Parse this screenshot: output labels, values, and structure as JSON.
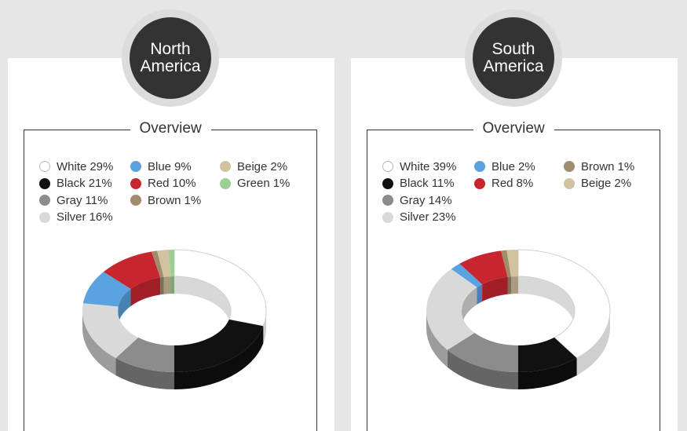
{
  "chart_data": [
    {
      "type": "pie",
      "title": "North America",
      "subtitle": "Overview",
      "categories": [
        "White",
        "Black",
        "Gray",
        "Silver",
        "Blue",
        "Red",
        "Brown",
        "Beige",
        "Green"
      ],
      "values": [
        29,
        21,
        11,
        16,
        9,
        10,
        1,
        2,
        1
      ],
      "value_labels": [
        "29%",
        "21%",
        "11%",
        "16%",
        "9%",
        "10%",
        "1%",
        "2%",
        "1%"
      ],
      "colors": [
        "#ffffff",
        "#111111",
        "#8c8c8c",
        "#d9d9d9",
        "#5aa2e0",
        "#c8262e",
        "#a08b6c",
        "#d2c3a0",
        "#9ccf93"
      ],
      "legend": "top"
    },
    {
      "type": "pie",
      "title": "South America",
      "subtitle": "Overview",
      "categories": [
        "White",
        "Black",
        "Gray",
        "Silver",
        "Blue",
        "Red",
        "Brown",
        "Beige"
      ],
      "values": [
        39,
        11,
        14,
        23,
        2,
        8,
        1,
        2
      ],
      "value_labels": [
        "39%",
        "11%",
        "14%",
        "23%",
        "2%",
        "8%",
        "1%",
        "2%"
      ],
      "colors": [
        "#ffffff",
        "#111111",
        "#8c8c8c",
        "#d9d9d9",
        "#5aa2e0",
        "#c8262e",
        "#a08b6c",
        "#d2c3a0"
      ],
      "legend": "top"
    }
  ]
}
